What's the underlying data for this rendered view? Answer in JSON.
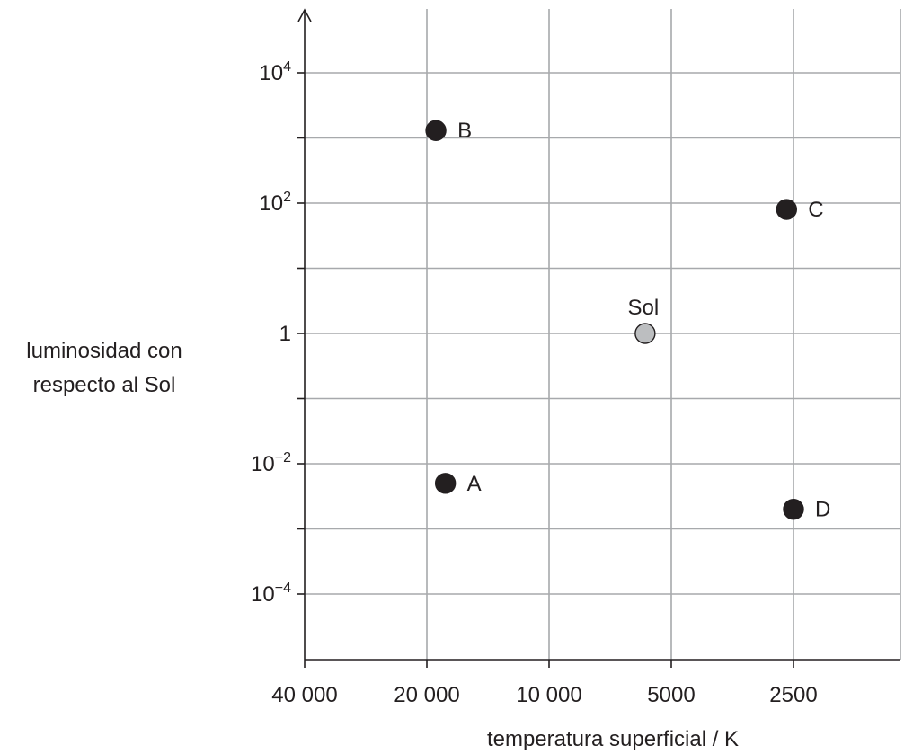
{
  "chart_data": {
    "type": "scatter",
    "title": "",
    "xlabel": "temperatura superficial / K",
    "ylabel_lines": [
      "luminosidad con",
      "respecto al Sol"
    ],
    "x_scale": "log-reversed",
    "y_scale": "log",
    "xlim": [
      40000,
      1250
    ],
    "ylim": [
      1e-05,
      100000
    ],
    "x_ticks": [
      {
        "value": 40000,
        "label": "40 000"
      },
      {
        "value": 20000,
        "label": "20 000"
      },
      {
        "value": 10000,
        "label": "10 000"
      },
      {
        "value": 5000,
        "label": "5000"
      },
      {
        "value": 2500,
        "label": "2500"
      }
    ],
    "y_ticks": [
      {
        "value": 10000,
        "base": "10",
        "exp": "4"
      },
      {
        "value": 100,
        "base": "10",
        "exp": "2"
      },
      {
        "value": 1,
        "base": "1",
        "exp": ""
      },
      {
        "value": 0.01,
        "base": "10",
        "exp": "−2"
      },
      {
        "value": 0.0001,
        "base": "10",
        "exp": "−4"
      }
    ],
    "grid": true,
    "points": [
      {
        "label": "B",
        "x": 19000,
        "y": 1300,
        "color": "#231f20"
      },
      {
        "label": "C",
        "x": 2600,
        "y": 80,
        "color": "#231f20"
      },
      {
        "label": "Sol",
        "x": 5800,
        "y": 1,
        "color": "#bcbec0"
      },
      {
        "label": "A",
        "x": 18000,
        "y": 0.005,
        "color": "#231f20"
      },
      {
        "label": "D",
        "x": 2500,
        "y": 0.002,
        "color": "#231f20"
      }
    ]
  }
}
